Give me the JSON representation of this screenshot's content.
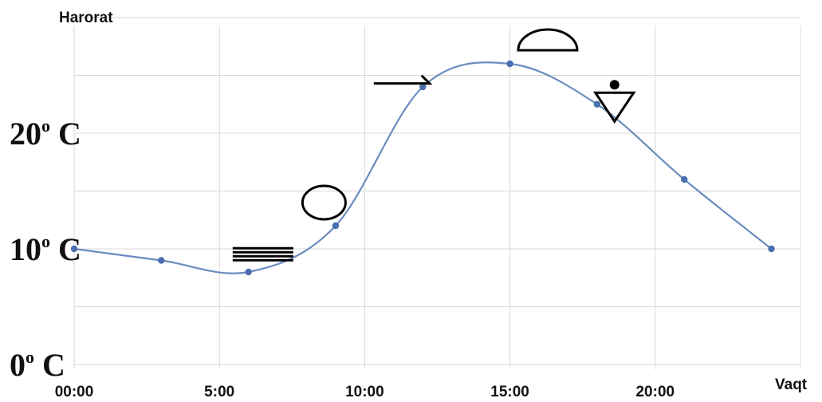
{
  "chart_data": {
    "type": "line",
    "title": "",
    "ylabel": "Harorat",
    "xlabel": "Vaqt",
    "x_ticks": [
      "00:00",
      "5:00",
      "10:00",
      "15:00",
      "20:00"
    ],
    "y_ticks": [
      {
        "base": "0",
        "sup": "o",
        "unit": " C"
      },
      {
        "base": "10",
        "sup": "o",
        "unit": " C"
      },
      {
        "base": "20",
        "sup": "o",
        "unit": " C"
      }
    ],
    "xlim": [
      0,
      25
    ],
    "ylim": [
      0,
      30
    ],
    "grid": true,
    "series": [
      {
        "line_color": "#6b8cbe",
        "marker_color": "#4a6fb0",
        "x": [
          0,
          3,
          6,
          9,
          12,
          15,
          18,
          21,
          24
        ],
        "y": [
          10,
          9,
          8,
          12,
          24,
          26,
          22.5,
          16,
          10
        ]
      }
    ],
    "weather_symbols": [
      {
        "icon": "fog-icon",
        "x": 6.5,
        "y": 9.5
      },
      {
        "icon": "clear-sky-circle-icon",
        "x": 8.6,
        "y": 14
      },
      {
        "icon": "wind-arrow-icon",
        "x": 11.3,
        "y": 24.3
      },
      {
        "icon": "half-circle-icon",
        "x": 16.3,
        "y": 28
      },
      {
        "icon": "rain-shower-icon",
        "x": 18.6,
        "y": 23.5
      }
    ]
  }
}
